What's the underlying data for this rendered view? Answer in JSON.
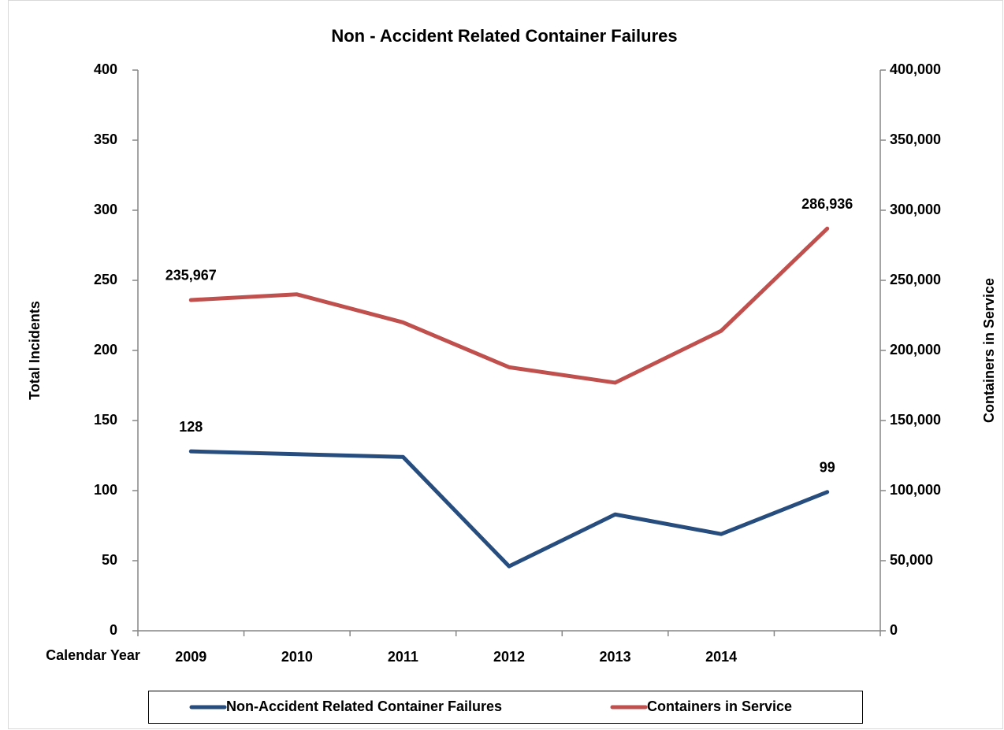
{
  "chart_data": {
    "type": "line",
    "title": "Non - Accident Related Container Failures",
    "x_label": "Calendar Year",
    "y_label": "Total Incidents",
    "y2_label": "Containers in Service",
    "categories": [
      "2009",
      "2010",
      "2011",
      "2012",
      "2013",
      "2014",
      null
    ],
    "series": [
      {
        "name": "Non-Accident Related Container Failures",
        "color": "#264d7e",
        "values": [
          128,
          126,
          124,
          46,
          83,
          69,
          99
        ],
        "value_labels": [
          "128",
          null,
          null,
          null,
          null,
          null,
          "99"
        ]
      },
      {
        "name": "Containers in Service",
        "color": "#c0504d",
        "axis": "y2",
        "values": [
          235967,
          240000,
          220000,
          188000,
          177000,
          214000,
          286936
        ],
        "value_labels": [
          "235,967",
          null,
          null,
          null,
          null,
          null,
          "286,936"
        ]
      }
    ],
    "ylim": [
      0,
      400
    ],
    "yticks": [
      0,
      50,
      100,
      150,
      200,
      250,
      300,
      350,
      400
    ],
    "y2lim": [
      0,
      400000
    ],
    "y2ticks": [
      0,
      {
        "value": 50000,
        "label": "50,000"
      },
      {
        "value": 100000,
        "label": "100,000"
      },
      {
        "value": 150000,
        "label": "150,000"
      },
      {
        "value": 200000,
        "label": "200,000"
      },
      {
        "value": 250000,
        "label": "250,000"
      },
      {
        "value": 300000,
        "label": "300,000"
      },
      {
        "value": 350000,
        "label": "350,000"
      },
      {
        "value": 400000,
        "label": "400,000"
      }
    ],
    "legend": "bottom"
  }
}
